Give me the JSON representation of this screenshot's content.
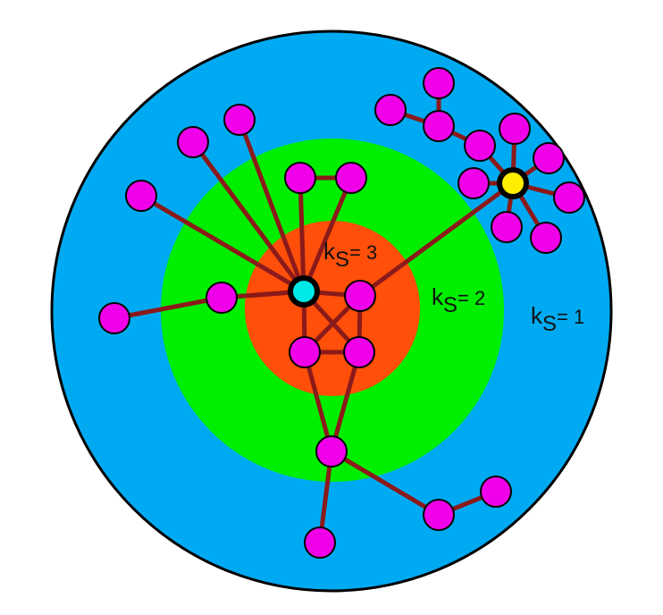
{
  "colors": {
    "outer_shell": "#00aaf2",
    "middle_shell": "#00ee00",
    "core_shell": "#ff4f0a",
    "edge": "#8b1a1a",
    "node": "#f000e8",
    "hub_center": "#00e8e8",
    "hub_peripheral": "#ffee00",
    "outline": "#000000"
  },
  "shells": [
    {
      "id": "shell-1",
      "label_k": "k",
      "label_sub": "S",
      "label_eq": "= 1",
      "fill": "outer_shell"
    },
    {
      "id": "shell-2",
      "label_k": "k",
      "label_sub": "S",
      "label_eq": "= 2",
      "fill": "middle_shell"
    },
    {
      "id": "shell-3",
      "label_k": "k",
      "label_sub": "S",
      "label_eq": "= 3",
      "fill": "core_shell"
    }
  ],
  "nodes": [
    {
      "id": "hub-c",
      "kind": "hub_center"
    },
    {
      "id": "hub-y",
      "kind": "hub_peripheral"
    },
    {
      "id": "c2",
      "kind": "node"
    },
    {
      "id": "c3",
      "kind": "node"
    },
    {
      "id": "c4",
      "kind": "node"
    },
    {
      "id": "m1",
      "kind": "node"
    },
    {
      "id": "m2",
      "kind": "node"
    },
    {
      "id": "m3",
      "kind": "node"
    },
    {
      "id": "m4",
      "kind": "node"
    },
    {
      "id": "o1",
      "kind": "node"
    },
    {
      "id": "o2",
      "kind": "node"
    },
    {
      "id": "o3",
      "kind": "node"
    },
    {
      "id": "o4",
      "kind": "node"
    },
    {
      "id": "o5",
      "kind": "node"
    },
    {
      "id": "o6",
      "kind": "node"
    },
    {
      "id": "o7",
      "kind": "node"
    },
    {
      "id": "t1",
      "kind": "node"
    },
    {
      "id": "t2",
      "kind": "node"
    },
    {
      "id": "t3",
      "kind": "node"
    },
    {
      "id": "y1",
      "kind": "node"
    },
    {
      "id": "y2",
      "kind": "node"
    },
    {
      "id": "y3",
      "kind": "node"
    },
    {
      "id": "y4",
      "kind": "node"
    },
    {
      "id": "y5",
      "kind": "node"
    },
    {
      "id": "y6",
      "kind": "node"
    },
    {
      "id": "y7",
      "kind": "node"
    }
  ],
  "edges": [
    [
      "hub-c",
      "c2"
    ],
    [
      "hub-c",
      "c3"
    ],
    [
      "hub-c",
      "c4"
    ],
    [
      "hub-c",
      "m1"
    ],
    [
      "hub-c",
      "m2"
    ],
    [
      "hub-c",
      "m3"
    ],
    [
      "hub-c",
      "o1"
    ],
    [
      "hub-c",
      "o2"
    ],
    [
      "hub-c",
      "o3"
    ],
    [
      "c2",
      "c4"
    ],
    [
      "c3",
      "c4"
    ],
    [
      "c3",
      "c2"
    ],
    [
      "c2",
      "hub-y"
    ],
    [
      "m2",
      "m3"
    ],
    [
      "m1",
      "o4"
    ],
    [
      "m1",
      "o5"
    ],
    [
      "c3",
      "m4"
    ],
    [
      "c4",
      "m4"
    ],
    [
      "m4",
      "o6"
    ],
    [
      "m4",
      "o7"
    ],
    [
      "o7",
      "o8"
    ],
    [
      "hub-y",
      "y1"
    ],
    [
      "hub-y",
      "y2"
    ],
    [
      "hub-y",
      "y3"
    ],
    [
      "hub-y",
      "y4"
    ],
    [
      "hub-y",
      "y5"
    ],
    [
      "hub-y",
      "y6"
    ],
    [
      "hub-y",
      "y7"
    ],
    [
      "y7",
      "t1"
    ],
    [
      "t1",
      "t2"
    ],
    [
      "t2",
      "t3"
    ]
  ]
}
